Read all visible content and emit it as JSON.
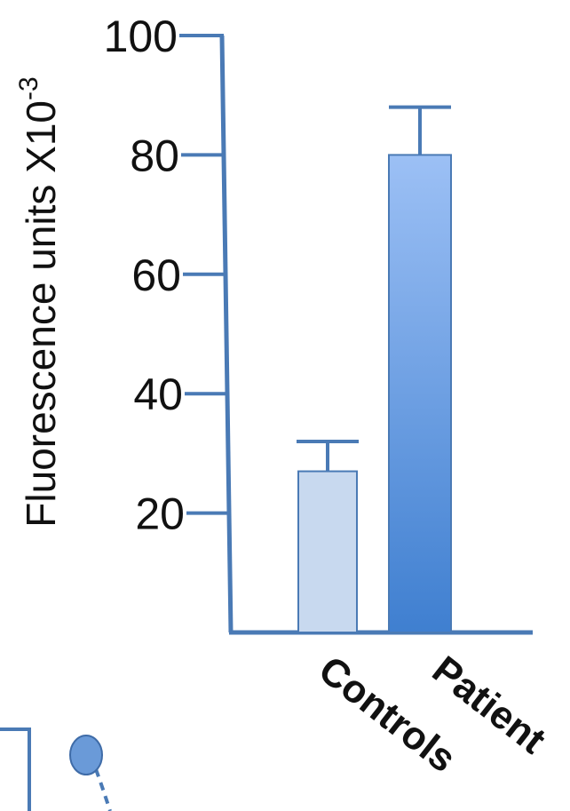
{
  "chart_data": {
    "type": "bar",
    "categories": [
      "Controls",
      "Patient"
    ],
    "values": [
      27,
      80
    ],
    "error": [
      5,
      8
    ],
    "ylabel_main": "Fluorescence units X10",
    "ylabel_exp": "-3",
    "yticks": [
      20,
      40,
      60,
      80,
      100
    ],
    "ytick_labels": [
      "20",
      "40",
      "60",
      "80",
      "100"
    ],
    "ylim": [
      0,
      100
    ],
    "axis_color": "#4a7ab5",
    "bar_colors": [
      "#c8d9ef",
      "#5b8fd6"
    ],
    "grid": false
  }
}
